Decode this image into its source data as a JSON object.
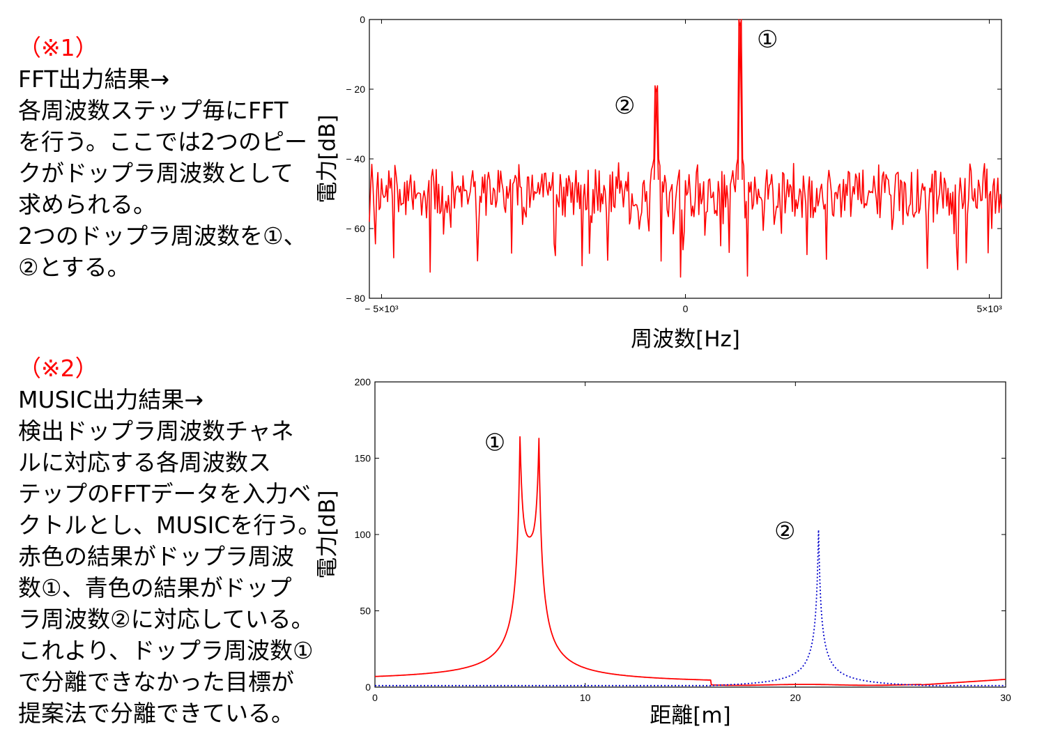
{
  "notes": [
    {
      "tag": "（※1）",
      "lines": [
        "FFT出力結果→",
        "各周波数ステップ毎にFFT",
        "を行う。ここでは2つのピー",
        "クがドップラ周波数として",
        "求められる。",
        "2つのドップラ周波数を①、",
        "②とする。"
      ]
    },
    {
      "tag": "（※2）",
      "lines": [
        "MUSIC出力結果→",
        "検出ドップラ周波数チャネ",
        "ルに対応する各周波数ス",
        "テップのFFTデータを入力ベ",
        "クトルとし、MUSICを行う。",
        "赤色の結果がドップラ周波",
        "数①、青色の結果がドップ",
        "ラ周波数②に対応している。",
        "これより、ドップラ周波数①",
        "で分離できなかった目標が",
        "提案法で分離できている。"
      ]
    }
  ],
  "colors": {
    "accent": "#ff0000",
    "series_blue": "#0000cc",
    "axis": "#000000"
  },
  "chart_data": [
    {
      "type": "line",
      "xlabel": "周波数[Hz]",
      "ylabel": "電力[dB]",
      "xlim": [
        -5200,
        5200
      ],
      "ylim": [
        -80,
        0
      ],
      "xticks": [
        {
          "v": -5000,
          "label": "− 5×10³"
        },
        {
          "v": 0,
          "label": "0"
        },
        {
          "v": 5000,
          "label": "5×10³"
        }
      ],
      "yticks": [
        {
          "v": 0,
          "label": "0"
        },
        {
          "v": -20,
          "label": "− 20"
        },
        {
          "v": -40,
          "label": "− 40"
        },
        {
          "v": -60,
          "label": "− 60"
        },
        {
          "v": -80,
          "label": "− 80"
        }
      ],
      "grid": false,
      "annotations": [
        {
          "text": "①",
          "x": 1350,
          "y": -8
        },
        {
          "text": "②",
          "x": -1000,
          "y": -27
        }
      ],
      "series": [
        {
          "color": "#ff0000",
          "style": "solid",
          "noise_floor_db": -50,
          "noise_range_db": [
            -74,
            -41
          ],
          "peaks": [
            {
              "x": 900,
              "y": -2
            },
            {
              "x": -480,
              "y": -21
            }
          ]
        }
      ]
    },
    {
      "type": "line",
      "xlabel": "距離[m]",
      "ylabel": "電力[dB]",
      "xlim": [
        0,
        30
      ],
      "ylim": [
        0,
        200
      ],
      "xticks": [
        {
          "v": 0,
          "label": "0"
        },
        {
          "v": 10,
          "label": "10"
        },
        {
          "v": 20,
          "label": "20"
        },
        {
          "v": 30,
          "label": "30"
        }
      ],
      "yticks": [
        {
          "v": 0,
          "label": "0"
        },
        {
          "v": 50,
          "label": "50"
        },
        {
          "v": 100,
          "label": "100"
        },
        {
          "v": 150,
          "label": "150"
        },
        {
          "v": 200,
          "label": "200"
        }
      ],
      "grid": false,
      "annotations": [
        {
          "text": "①",
          "x": 5.7,
          "y": 155
        },
        {
          "text": "②",
          "x": 19.5,
          "y": 97
        }
      ],
      "series": [
        {
          "color": "#ff0000",
          "style": "solid",
          "peaks": [
            {
              "x": 6.9,
              "y": 164
            },
            {
              "x": 7.8,
              "y": 163
            }
          ],
          "valley": {
            "x": 7.35,
            "y": 96
          },
          "edges": {
            "x0": 5,
            "x30": 5
          }
        },
        {
          "color": "#0000cc",
          "style": "dotted",
          "peaks": [
            {
              "x": 21.1,
              "y": 103
            }
          ],
          "floor": 1
        }
      ]
    }
  ]
}
